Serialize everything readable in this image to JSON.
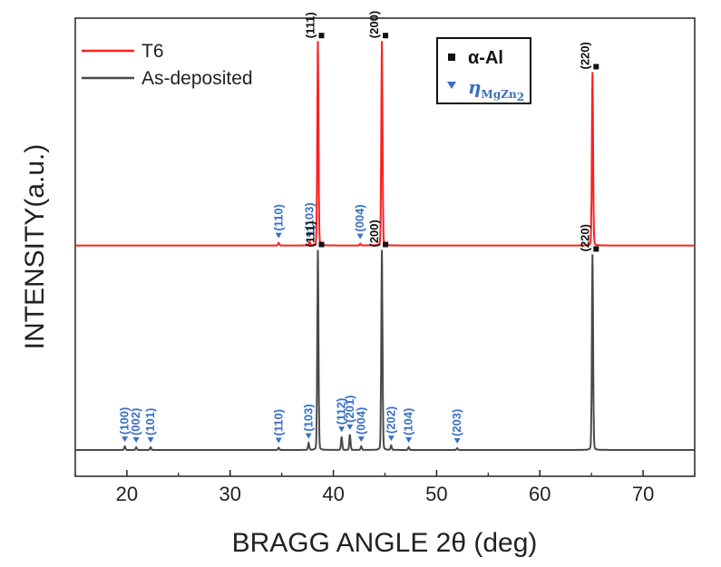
{
  "chart_data": {
    "type": "line",
    "xlabel": "BRAGG ANGLE 2θ (deg)",
    "ylabel": "INTENSITY(a.u.)",
    "xlim": [
      15,
      75
    ],
    "x_ticks": [
      20,
      30,
      40,
      50,
      60,
      70
    ],
    "grid": false,
    "legend_position": "top-left",
    "series": [
      {
        "name": "T6",
        "color": "#ff2020",
        "offset": 0.46,
        "peaks": [
          {
            "x": 38.5,
            "height": 0.46
          },
          {
            "x": 44.7,
            "height": 0.46
          },
          {
            "x": 65.1,
            "height": 0.39
          },
          {
            "x": 34.7,
            "height": 0.006
          },
          {
            "x": 37.7,
            "height": 0.008
          },
          {
            "x": 42.6,
            "height": 0.004
          }
        ],
        "annotations": [
          {
            "label": "(111)",
            "x": 38.5,
            "phase": "alpha",
            "color": "#111111"
          },
          {
            "label": "(200)",
            "x": 44.7,
            "phase": "alpha",
            "color": "#111111"
          },
          {
            "label": "(220)",
            "x": 65.1,
            "phase": "alpha",
            "color": "#111111"
          },
          {
            "label": "(110)",
            "x": 34.7,
            "phase": "eta",
            "color": "#3a6fc4"
          },
          {
            "label": "(103)",
            "x": 37.7,
            "phase": "eta",
            "color": "#3a6fc4"
          },
          {
            "label": "(004)",
            "x": 42.6,
            "phase": "eta",
            "color": "#3a6fc4"
          }
        ]
      },
      {
        "name": "As-deposited",
        "color": "#4a4a4a",
        "offset": 0.0,
        "peaks": [
          {
            "x": 38.5,
            "height": 0.45
          },
          {
            "x": 44.7,
            "height": 0.45
          },
          {
            "x": 65.1,
            "height": 0.44
          },
          {
            "x": 19.8,
            "height": 0.008
          },
          {
            "x": 20.9,
            "height": 0.006
          },
          {
            "x": 22.3,
            "height": 0.006
          },
          {
            "x": 34.7,
            "height": 0.005
          },
          {
            "x": 37.6,
            "height": 0.015
          },
          {
            "x": 40.8,
            "height": 0.03
          },
          {
            "x": 41.6,
            "height": 0.035
          },
          {
            "x": 42.7,
            "height": 0.008
          },
          {
            "x": 45.6,
            "height": 0.01
          },
          {
            "x": 47.3,
            "height": 0.006
          },
          {
            "x": 52.0,
            "height": 0.004
          }
        ],
        "annotations": [
          {
            "label": "(111)",
            "x": 38.5,
            "phase": "alpha",
            "color": "#111111"
          },
          {
            "label": "(200)",
            "x": 44.7,
            "phase": "alpha",
            "color": "#111111"
          },
          {
            "label": "(220)",
            "x": 65.1,
            "phase": "alpha",
            "color": "#111111"
          },
          {
            "label": "(100)",
            "x": 19.8,
            "phase": "eta",
            "color": "#3a6fc4"
          },
          {
            "label": "(002)",
            "x": 20.9,
            "phase": "eta",
            "color": "#3a6fc4"
          },
          {
            "label": "(101)",
            "x": 22.3,
            "phase": "eta",
            "color": "#3a6fc4"
          },
          {
            "label": "(110)",
            "x": 34.7,
            "phase": "eta",
            "color": "#3a6fc4"
          },
          {
            "label": "(103)",
            "x": 37.6,
            "phase": "eta",
            "color": "#3a6fc4"
          },
          {
            "label": "(112)",
            "x": 40.8,
            "phase": "eta",
            "color": "#3a6fc4"
          },
          {
            "label": "(201)",
            "x": 41.6,
            "phase": "eta",
            "color": "#3a6fc4"
          },
          {
            "label": "(004)",
            "x": 42.7,
            "phase": "eta",
            "color": "#3a6fc4"
          },
          {
            "label": "(202)",
            "x": 45.6,
            "phase": "eta",
            "color": "#3a6fc4"
          },
          {
            "label": "(104)",
            "x": 47.3,
            "phase": "eta",
            "color": "#3a6fc4"
          },
          {
            "label": "(203)",
            "x": 52.0,
            "phase": "eta",
            "color": "#3a6fc4"
          }
        ]
      }
    ],
    "phase_legend": {
      "alpha": {
        "label": "α-Al",
        "symbol": "square",
        "color": "#111111"
      },
      "eta": {
        "label": "η",
        "subscript": "MgZn",
        "subscript2": "2",
        "symbol": "triangle-down",
        "color": "#3a6fc4"
      }
    }
  }
}
